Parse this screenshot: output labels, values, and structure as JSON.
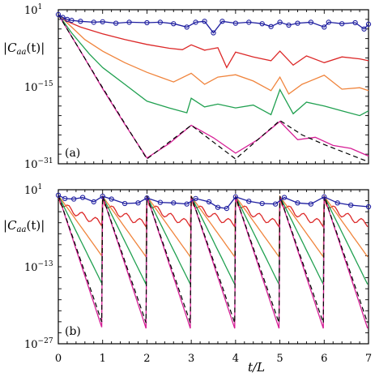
{
  "chart_data": [
    {
      "type": "line",
      "panel_label": "(a)",
      "ylabel": "|C_aa(t)|",
      "ylabel_parts": {
        "pre": "|",
        "C": "C",
        "sub": "aa",
        "post": "(t)|"
      },
      "yscale": "log",
      "ylim_exp": [
        -31,
        1
      ],
      "yticks": [
        {
          "base": "10",
          "exp": "1",
          "value_exp": 1
        },
        {
          "base": "10",
          "exp": "−15",
          "value_exp": -15
        },
        {
          "base": "10",
          "exp": "−31",
          "value_exp": -31
        }
      ],
      "xlim": [
        0,
        7
      ],
      "series": [
        {
          "color": "#1f1fa0",
          "marker": "circle",
          "points": [
            [
              0,
              0
            ],
            [
              0.1,
              -0.6
            ],
            [
              0.2,
              -1
            ],
            [
              0.3,
              -1.2
            ],
            [
              0.5,
              -1.4
            ],
            [
              0.8,
              -1.6
            ],
            [
              1,
              -1.5
            ],
            [
              1.3,
              -1.8
            ],
            [
              1.6,
              -1.6
            ],
            [
              2,
              -1.7
            ],
            [
              2.3,
              -1.6
            ],
            [
              2.6,
              -1.9
            ],
            [
              2.9,
              -2.6
            ],
            [
              3.1,
              -1.6
            ],
            [
              3.3,
              -1.4
            ],
            [
              3.5,
              -3.8
            ],
            [
              3.7,
              -1.4
            ],
            [
              4,
              -1.8
            ],
            [
              4.3,
              -1.6
            ],
            [
              4.6,
              -1.9
            ],
            [
              4.8,
              -2.5
            ],
            [
              5,
              -1.6
            ],
            [
              5.2,
              -2.2
            ],
            [
              5.4,
              -1.8
            ],
            [
              5.7,
              -1.6
            ],
            [
              6,
              -2.6
            ],
            [
              6.1,
              -1.6
            ],
            [
              6.4,
              -1.9
            ],
            [
              6.7,
              -1.7
            ],
            [
              6.9,
              -3
            ],
            [
              7,
              -2
            ]
          ]
        },
        {
          "color": "#dc2828",
          "points": [
            [
              0,
              0
            ],
            [
              0.2,
              -1.4
            ],
            [
              0.5,
              -2.6
            ],
            [
              1,
              -4
            ],
            [
              1.5,
              -5.2
            ],
            [
              2,
              -6.2
            ],
            [
              2.5,
              -7
            ],
            [
              2.8,
              -7.3
            ],
            [
              3,
              -6.3
            ],
            [
              3.3,
              -7.4
            ],
            [
              3.6,
              -6.9
            ],
            [
              3.8,
              -11
            ],
            [
              4,
              -7.8
            ],
            [
              4.4,
              -8.8
            ],
            [
              4.8,
              -9.6
            ],
            [
              5,
              -7.6
            ],
            [
              5.3,
              -10.5
            ],
            [
              5.6,
              -8.6
            ],
            [
              6,
              -10
            ],
            [
              6.4,
              -8.8
            ],
            [
              6.8,
              -9.2
            ],
            [
              7,
              -9.6
            ]
          ]
        },
        {
          "color": "#f0843c",
          "points": [
            [
              0,
              0
            ],
            [
              0.3,
              -2.6
            ],
            [
              0.6,
              -5.2
            ],
            [
              1,
              -7.6
            ],
            [
              1.5,
              -10
            ],
            [
              2,
              -12
            ],
            [
              2.3,
              -13
            ],
            [
              2.6,
              -14
            ],
            [
              3,
              -12.2
            ],
            [
              3.3,
              -14.5
            ],
            [
              3.6,
              -13
            ],
            [
              4,
              -12.5
            ],
            [
              4.4,
              -13.8
            ],
            [
              4.8,
              -15.8
            ],
            [
              5,
              -13
            ],
            [
              5.2,
              -16.5
            ],
            [
              5.5,
              -14.5
            ],
            [
              6,
              -12.6
            ],
            [
              6.4,
              -15.5
            ],
            [
              6.8,
              -15.2
            ],
            [
              7,
              -15.8
            ]
          ]
        },
        {
          "color": "#20a050",
          "points": [
            [
              0,
              0
            ],
            [
              0.3,
              -3.8
            ],
            [
              0.7,
              -8.2
            ],
            [
              1,
              -11
            ],
            [
              1.5,
              -14.5
            ],
            [
              2,
              -18
            ],
            [
              2.5,
              -19.4
            ],
            [
              2.9,
              -20.4
            ],
            [
              3,
              -17.4
            ],
            [
              3.3,
              -19.2
            ],
            [
              3.6,
              -18.6
            ],
            [
              4,
              -19.4
            ],
            [
              4.4,
              -18.8
            ],
            [
              4.8,
              -20.8
            ],
            [
              5,
              -15.6
            ],
            [
              5.3,
              -20.6
            ],
            [
              5.6,
              -18.2
            ],
            [
              6,
              -19
            ],
            [
              6.4,
              -20
            ],
            [
              6.8,
              -21
            ],
            [
              7,
              -20
            ]
          ]
        },
        {
          "color": "#d61e96",
          "points": [
            [
              0,
              0
            ],
            [
              0.5,
              -7.6
            ],
            [
              1,
              -15.4
            ],
            [
              1.5,
              -22.8
            ],
            [
              2,
              -29.8
            ],
            [
              2.5,
              -26.8
            ],
            [
              3,
              -23
            ],
            [
              3.5,
              -25.6
            ],
            [
              4,
              -28.8
            ],
            [
              4.5,
              -26
            ],
            [
              5,
              -22.2
            ],
            [
              5.4,
              -26
            ],
            [
              5.8,
              -25.5
            ],
            [
              6.2,
              -27.2
            ],
            [
              6.6,
              -27.8
            ],
            [
              7,
              -29.4
            ]
          ]
        },
        {
          "color": "#000000",
          "dash": "6,4",
          "points": [
            [
              0,
              0
            ],
            [
              1,
              -15.2
            ],
            [
              2,
              -30
            ],
            [
              3,
              -23
            ],
            [
              4,
              -30
            ],
            [
              5,
              -22
            ],
            [
              5.5,
              -25
            ],
            [
              6,
              -27
            ],
            [
              7,
              -30.6
            ]
          ]
        }
      ]
    },
    {
      "type": "line",
      "panel_label": "(b)",
      "ylabel": "|C_aa(t)|",
      "ylabel_parts": {
        "pre": "|",
        "C": "C",
        "sub": "aa",
        "post": "(t)|"
      },
      "yscale": "log",
      "ylim_exp": [
        -27,
        1
      ],
      "yticks": [
        {
          "base": "10",
          "exp": "1",
          "value_exp": 1
        },
        {
          "base": "10",
          "exp": "−13",
          "value_exp": -13
        },
        {
          "base": "10",
          "exp": "−27",
          "value_exp": -27
        }
      ],
      "xlim": [
        0,
        7
      ],
      "xlabel": "t/L",
      "xticks": [
        "0",
        "1",
        "2",
        "3",
        "4",
        "5",
        "6",
        "7"
      ],
      "series": [
        {
          "color": "#1f1fa0",
          "marker": "circle",
          "points": [
            [
              0,
              0
            ],
            [
              0.15,
              -0.6
            ],
            [
              0.35,
              -0.7
            ],
            [
              0.55,
              -0.4
            ],
            [
              0.8,
              -1.2
            ],
            [
              1,
              -0.2
            ],
            [
              1.2,
              -0.7
            ],
            [
              1.5,
              -1.5
            ],
            [
              1.8,
              -1.4
            ],
            [
              2,
              -0.5
            ],
            [
              2.3,
              -1.3
            ],
            [
              2.6,
              -1.4
            ],
            [
              2.9,
              -1.6
            ],
            [
              3.1,
              -0.6
            ],
            [
              3.4,
              -1.2
            ],
            [
              3.6,
              -2.2
            ],
            [
              3.8,
              -2.4
            ],
            [
              4,
              -0.3
            ],
            [
              4.3,
              -1.1
            ],
            [
              4.6,
              -1.5
            ],
            [
              4.9,
              -1.6
            ],
            [
              5.1,
              -0.4
            ],
            [
              5.4,
              -1.4
            ],
            [
              5.7,
              -1.6
            ],
            [
              6,
              -0.3
            ],
            [
              6.3,
              -1.4
            ],
            [
              6.6,
              -1.8
            ],
            [
              7,
              -2.1
            ]
          ]
        },
        {
          "color": "#dc2828",
          "cycle_drop": 5
        },
        {
          "color": "#f0843c",
          "cycle_drop": 11
        },
        {
          "color": "#20a050",
          "cycle_drop": 16
        },
        {
          "color": "#d61e96",
          "cycle_drop": 24
        },
        {
          "color": "#000000",
          "dash": "6,4",
          "cycle_drop": 23
        }
      ]
    }
  ]
}
